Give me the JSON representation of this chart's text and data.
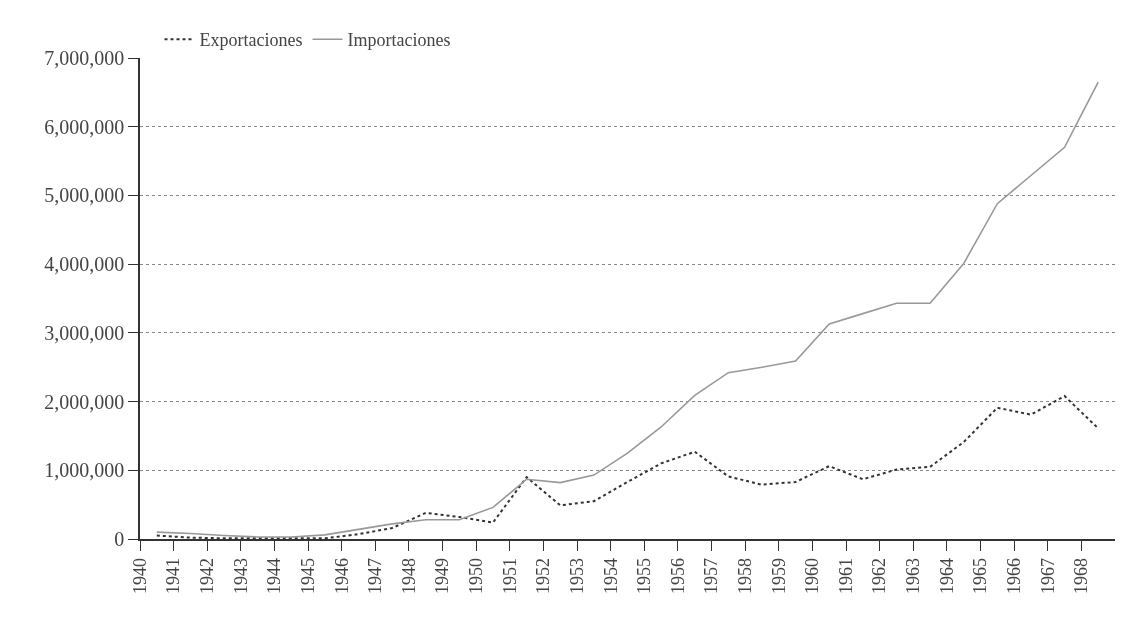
{
  "chart_data": {
    "type": "line",
    "x": [
      1940.5,
      1941.5,
      1942.5,
      1943.5,
      1944.5,
      1945.5,
      1946.5,
      1947.5,
      1948.5,
      1949.5,
      1950.5,
      1951.5,
      1952.5,
      1953.5,
      1954.5,
      1955.5,
      1956.5,
      1957.5,
      1958.5,
      1959.5,
      1960.5,
      1961.5,
      1962.5,
      1963.5,
      1964.5,
      1965.5,
      1966.5,
      1967.5,
      1968.5
    ],
    "series": [
      {
        "name": "Exportaciones",
        "color": "#333333",
        "line_style": "dotted",
        "values": [
          50000,
          20000,
          10000,
          10000,
          10000,
          10000,
          70000,
          160000,
          380000,
          320000,
          240000,
          900000,
          490000,
          550000,
          830000,
          1100000,
          1270000,
          910000,
          790000,
          830000,
          1060000,
          870000,
          1010000,
          1050000,
          1410000,
          1910000,
          1810000,
          2080000,
          1610000
        ]
      },
      {
        "name": "Importaciones",
        "color": "#999999",
        "line_style": "solid",
        "values": [
          100000,
          80000,
          50000,
          30000,
          30000,
          60000,
          140000,
          220000,
          280000,
          280000,
          460000,
          870000,
          820000,
          930000,
          1250000,
          1630000,
          2090000,
          2420000,
          2500000,
          2590000,
          3130000,
          3280000,
          3430000,
          3430000,
          4010000,
          4880000,
          5290000,
          5700000,
          6650000
        ]
      }
    ],
    "xlim": [
      1940,
      1969
    ],
    "xticks": [
      1940,
      1941,
      1942,
      1943,
      1944,
      1945,
      1946,
      1947,
      1948,
      1949,
      1950,
      1951,
      1952,
      1953,
      1954,
      1955,
      1956,
      1957,
      1958,
      1959,
      1960,
      1961,
      1962,
      1963,
      1964,
      1965,
      1966,
      1967,
      1968
    ],
    "ylim": [
      0,
      7000000
    ],
    "yticks": [
      0,
      {
        "value": 1000000,
        "label": "1,000,000"
      },
      {
        "value": 2000000,
        "label": "2,000,000"
      },
      {
        "value": 3000000,
        "label": "3,000,000"
      },
      {
        "value": 4000000,
        "label": "4,000,000"
      },
      {
        "value": 5000000,
        "label": "5,000,000"
      },
      {
        "value": 6000000,
        "label": "6,000,000"
      },
      {
        "value": 7000000,
        "label": "7,000,000"
      }
    ],
    "grid": "y",
    "legend": "top left",
    "marker": "none"
  }
}
